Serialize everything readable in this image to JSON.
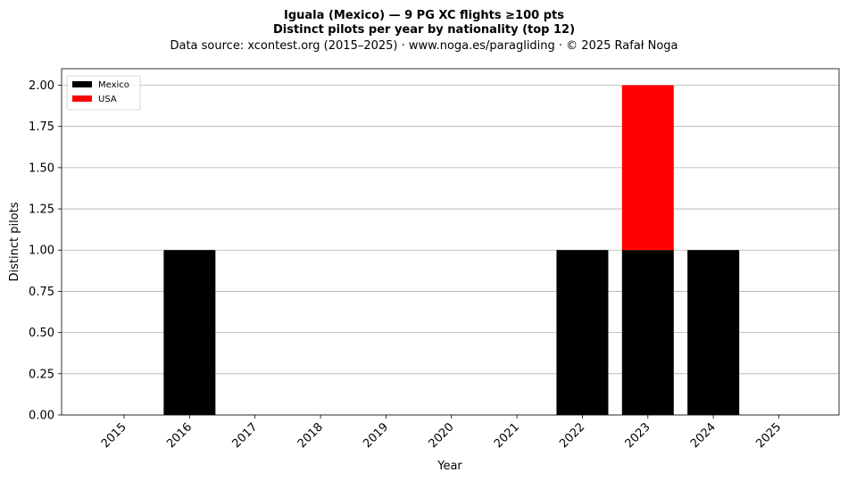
{
  "chart_data": {
    "type": "bar",
    "stacked": true,
    "title": "Iguala (Mexico)  —  9 PG XC flights ≥100 pts",
    "subtitle": "Distinct pilots per year by nationality (top 12)",
    "source": "Data source: xcontest.org (2015–2025)  ·  www.noga.es/paragliding  ·  © 2025 Rafał Noga",
    "xlabel": "Year",
    "ylabel": "Distinct pilots",
    "categories": [
      "2015",
      "2016",
      "2017",
      "2018",
      "2019",
      "2020",
      "2021",
      "2022",
      "2023",
      "2024",
      "2025"
    ],
    "series": [
      {
        "name": "Mexico",
        "color": "#000000",
        "values": [
          0,
          1,
          0,
          0,
          0,
          0,
          0,
          1,
          1,
          1,
          0
        ]
      },
      {
        "name": "USA",
        "color": "#ff0000",
        "values": [
          0,
          0,
          0,
          0,
          0,
          0,
          0,
          0,
          1,
          0,
          0
        ]
      }
    ],
    "ylim": [
      0,
      2.1
    ],
    "yticks": [
      "0.00",
      "0.25",
      "0.50",
      "0.75",
      "1.00",
      "1.25",
      "1.50",
      "1.75",
      "2.00"
    ],
    "grid": "horizontal",
    "legend_position": "top-left"
  }
}
